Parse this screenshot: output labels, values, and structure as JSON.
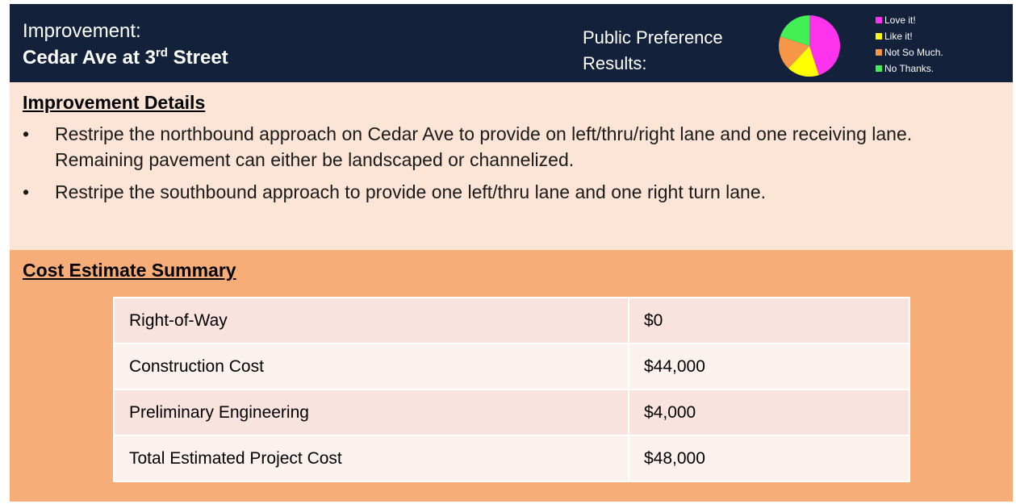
{
  "header": {
    "label": "Improvement:",
    "title_parts": [
      "Cedar Ave at 3",
      "rd",
      " Street"
    ],
    "preference_label_lines": [
      "Public Preference",
      "Results:"
    ]
  },
  "preference_chart": {
    "type": "pie",
    "categories": [
      "Love it!",
      "Like it!",
      "Not So Much.",
      "No Thanks."
    ],
    "values": [
      45,
      17,
      18,
      20
    ],
    "colors": [
      "#ff33ee",
      "#ffff00",
      "#f79646",
      "#44ee55"
    ]
  },
  "details": {
    "heading": "Improvement Details",
    "bullets": [
      "Restripe the northbound approach on Cedar Ave to provide on left/thru/right lane and one receiving lane. Remaining pavement can either be landscaped or channelized.",
      "Restripe the southbound approach to provide one left/thru lane and one right turn lane."
    ]
  },
  "cost": {
    "heading": "Cost Estimate Summary",
    "table": {
      "rows": [
        [
          "Right-of-Way",
          "$0"
        ],
        [
          "Construction Cost",
          "$44,000"
        ],
        [
          "Preliminary Engineering",
          "$4,000"
        ],
        [
          "Total Estimated Project Cost",
          "$48,000"
        ]
      ]
    }
  }
}
